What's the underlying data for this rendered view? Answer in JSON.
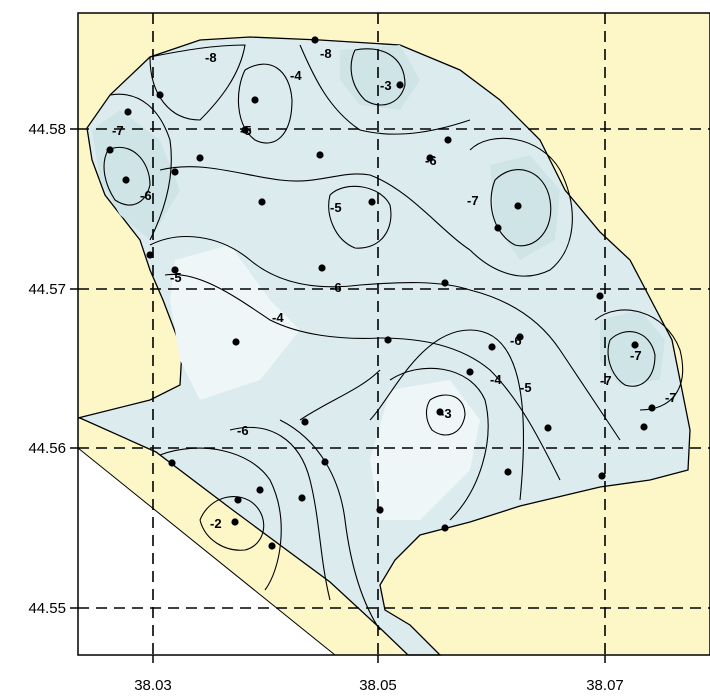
{
  "colors": {
    "land": "#fdf7c8",
    "water_deep": "#cfe4e6",
    "water_mid": "#dcecee",
    "water_shallow": "#eef6f7",
    "sea_open": "#ffffff",
    "frame": "#000000"
  },
  "axes": {
    "x_ticks": [
      "38.03",
      "38.05",
      "38.07"
    ],
    "y_ticks": [
      "44.58",
      "44.57",
      "44.56",
      "44.55"
    ]
  },
  "contour_labels": [
    {
      "id": "c1",
      "text": "-8"
    },
    {
      "id": "c2",
      "text": "-7"
    },
    {
      "id": "c3",
      "text": "-6"
    },
    {
      "id": "c4",
      "text": "-5"
    },
    {
      "id": "c5",
      "text": "-4"
    },
    {
      "id": "c6",
      "text": "-3"
    },
    {
      "id": "c7",
      "text": "-6"
    },
    {
      "id": "c8",
      "text": "-7"
    },
    {
      "id": "c9",
      "text": "-5"
    },
    {
      "id": "c10",
      "text": "-6"
    },
    {
      "id": "c11",
      "text": "-4"
    },
    {
      "id": "c12",
      "text": "-5"
    },
    {
      "id": "c13",
      "text": "-3"
    },
    {
      "id": "c14",
      "text": "-7"
    },
    {
      "id": "c15",
      "text": "-6"
    },
    {
      "id": "c16",
      "text": "-8"
    },
    {
      "id": "c17",
      "text": "-4"
    },
    {
      "id": "c18",
      "text": "-5"
    },
    {
      "id": "c19",
      "text": "-7"
    },
    {
      "id": "c20",
      "text": "-2"
    },
    {
      "id": "c21",
      "text": "-6"
    },
    {
      "id": "c22",
      "text": "-7"
    }
  ]
}
